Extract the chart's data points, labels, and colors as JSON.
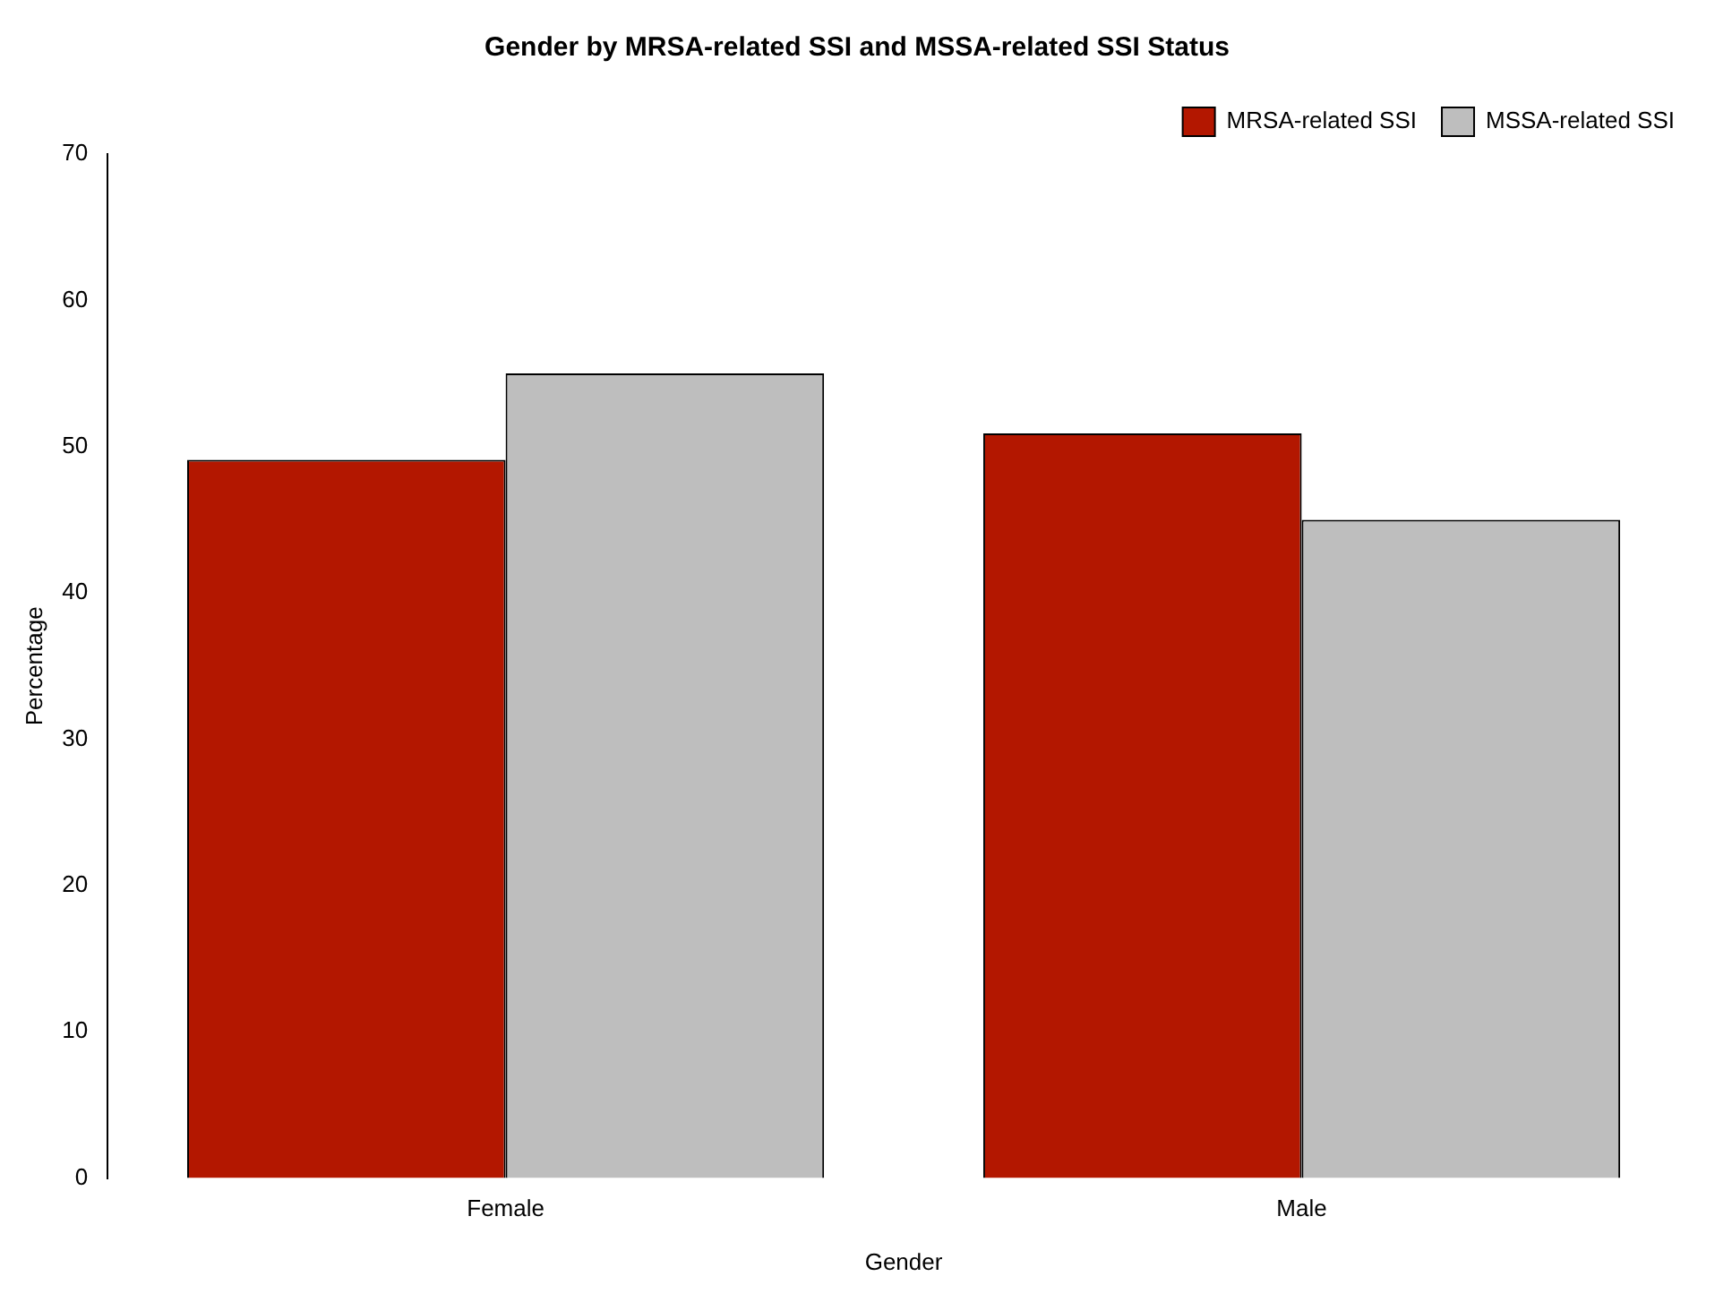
{
  "chart_data": {
    "type": "bar",
    "title": "Gender by MRSA-related SSI and MSSA-related SSI Status",
    "xlabel": "Gender",
    "ylabel": "Percentage",
    "categories": [
      "Female",
      "Male"
    ],
    "series": [
      {
        "name": "MRSA-related SSI",
        "color": "#b31700",
        "values": [
          49.1,
          50.9
        ]
      },
      {
        "name": "MSSA-related SSI",
        "color": "#bebebe",
        "values": [
          55,
          45
        ]
      }
    ],
    "ylim": [
      0,
      70
    ],
    "yticks": [
      0,
      10,
      20,
      30,
      40,
      50,
      60,
      70
    ],
    "grid": false,
    "legend": "top right"
  }
}
